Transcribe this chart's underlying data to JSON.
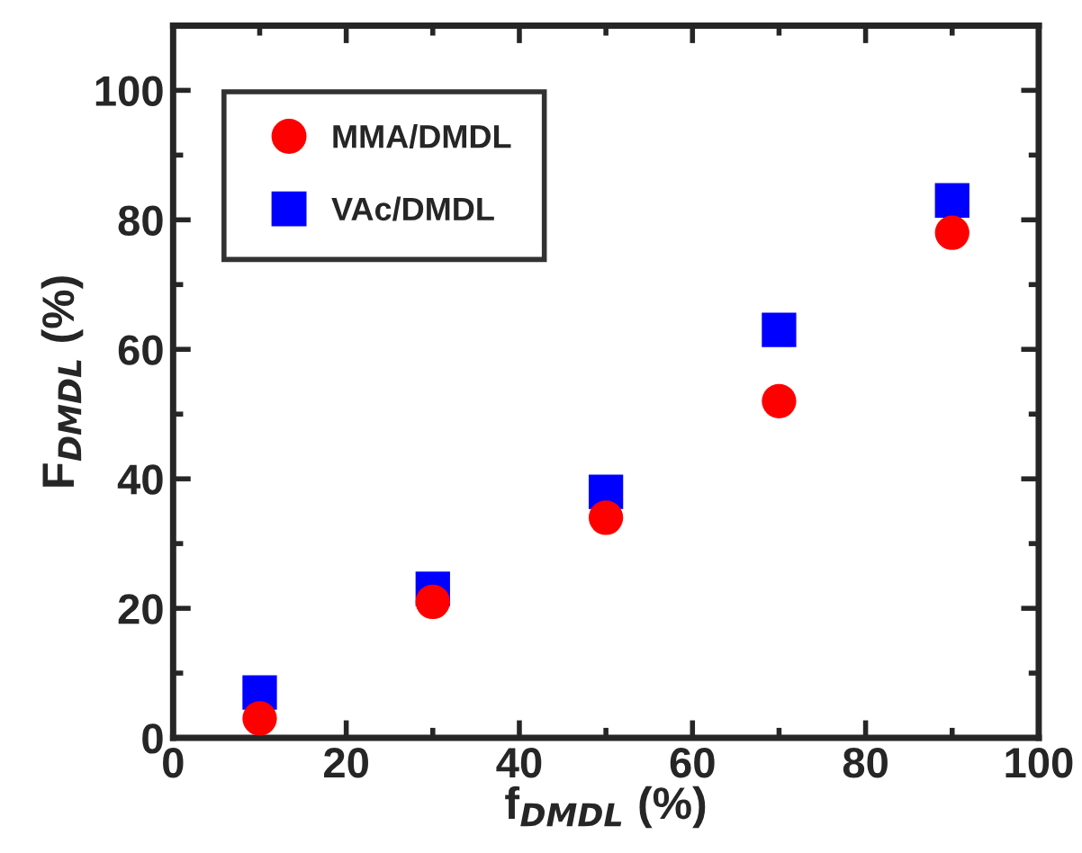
{
  "chart_data": {
    "type": "scatter",
    "xlabel": "f$_{DMDL}$ (%)",
    "ylabel": "F$_{DMDL}$ (%)",
    "xlim": [
      0,
      100
    ],
    "ylim": [
      0,
      110
    ],
    "xticks": [
      0,
      20,
      40,
      60,
      80,
      100
    ],
    "yticks": [
      0,
      20,
      40,
      60,
      80,
      100
    ],
    "x": [
      10,
      30,
      50,
      70,
      90
    ],
    "series": [
      {
        "name": "MMA/DMDL",
        "color": "#ff0000",
        "marker": "circle",
        "values": [
          3,
          21,
          34,
          52,
          78
        ]
      },
      {
        "name": "VAc/DMDL",
        "color": "#0000ff",
        "marker": "square",
        "values": [
          7,
          23,
          38,
          63,
          83
        ]
      }
    ],
    "legend": "top left",
    "grid": false
  }
}
